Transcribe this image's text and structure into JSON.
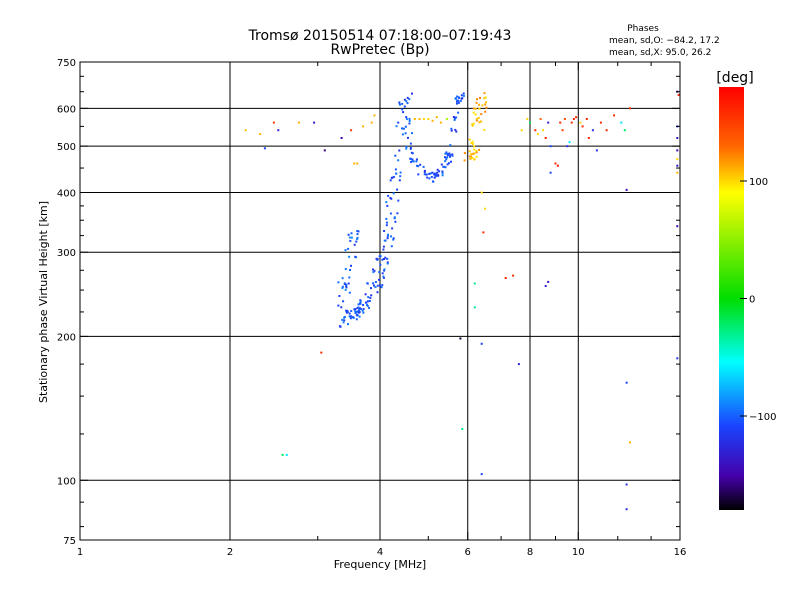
{
  "chart_data": {
    "type": "scatter",
    "title": "Tromsø 20150514 07:18:00–07:19:43",
    "subtitle": "RwPretec (Bp)",
    "stats": {
      "heading": "Phases",
      "line_o": "mean, sd,O: −84.2, 17.2",
      "line_x": "mean, sd,X:  95.0, 26.2"
    },
    "xlabel": "Frequency [MHz]",
    "ylabel": "Stationary phase Virtual Height [km]",
    "x_scale": "log",
    "y_scale": "log",
    "xlim": [
      1,
      16
    ],
    "ylim": [
      75,
      750
    ],
    "grid": true,
    "x_ticks": [
      1,
      2,
      4,
      6,
      8,
      10,
      16
    ],
    "x_tick_labels": [
      "1",
      "2",
      "4",
      "6",
      "8",
      "10",
      "16"
    ],
    "x_minor_ticks": [
      3,
      5,
      7,
      9,
      12,
      14
    ],
    "y_ticks": [
      75,
      100,
      200,
      300,
      400,
      500,
      600,
      750
    ],
    "y_tick_labels": [
      "75",
      "100",
      "200",
      "300",
      "400",
      "500",
      "600",
      "750"
    ],
    "y_minor_ticks": [
      80,
      90,
      125,
      150,
      175,
      225,
      250,
      275,
      325,
      350,
      375,
      450,
      550,
      650,
      700
    ],
    "colorbar": {
      "label": "[deg]",
      "range": [
        -180,
        180
      ],
      "ticks": [
        100,
        0,
        -100
      ],
      "tick_labels": [
        "100",
        "0",
        "−100"
      ],
      "colormap": "rainbow"
    },
    "series": [
      {
        "trace_segments": [
          {
            "f": [
              3.35,
              3.45,
              3.55,
              3.65,
              3.75,
              3.85,
              3.95,
              4.05,
              4.15,
              4.25,
              4.35,
              4.45,
              4.52
            ],
            "h": [
              210,
              220,
              222,
              226,
              235,
              248,
              262,
              285,
              320,
              380,
              470,
              570,
              640
            ],
            "jitter_f": 0.03,
            "jitter_h": 0.025,
            "n": 150,
            "phase": -105
          },
          {
            "f": [
              3.35,
              3.42,
              3.5,
              3.58
            ],
            "h": [
              230,
              260,
              300,
              330
            ],
            "jitter_f": 0.03,
            "jitter_h": 0.04,
            "n": 40,
            "phase": -100
          },
          {
            "f": [
              4.5,
              4.6,
              4.75,
              4.95,
              5.15,
              5.35,
              5.5,
              5.65,
              5.75,
              5.8
            ],
            "h": [
              620,
              500,
              450,
              430,
              430,
              445,
              480,
              560,
              620,
              640
            ],
            "jitter_f": 0.02,
            "jitter_h": 0.02,
            "n": 110,
            "phase": -105
          },
          {
            "f": [
              6.0,
              6.1,
              6.2,
              6.3,
              6.35,
              6.4
            ],
            "h": [
              480,
              475,
              490,
              540,
              600,
              640
            ],
            "jitter_f": 0.03,
            "jitter_h": 0.02,
            "n": 50,
            "phase": 110
          }
        ],
        "points": [
          {
            "f": 2.15,
            "h": 540,
            "phase": 105
          },
          {
            "f": 2.3,
            "h": 530,
            "phase": 110
          },
          {
            "f": 2.35,
            "h": 495,
            "phase": -110
          },
          {
            "f": 2.45,
            "h": 560,
            "phase": 150
          },
          {
            "f": 2.5,
            "h": 540,
            "phase": -130
          },
          {
            "f": 2.75,
            "h": 560,
            "phase": 110
          },
          {
            "f": 2.95,
            "h": 560,
            "phase": -140
          },
          {
            "f": 3.1,
            "h": 490,
            "phase": -160
          },
          {
            "f": 3.35,
            "h": 520,
            "phase": -150
          },
          {
            "f": 3.5,
            "h": 540,
            "phase": 150
          },
          {
            "f": 3.55,
            "h": 460,
            "phase": 110
          },
          {
            "f": 3.6,
            "h": 460,
            "phase": 110
          },
          {
            "f": 3.7,
            "h": 550,
            "phase": 110
          },
          {
            "f": 3.85,
            "h": 560,
            "phase": 110
          },
          {
            "f": 3.9,
            "h": 580,
            "phase": 110
          },
          {
            "f": 4.7,
            "h": 570,
            "phase": 110
          },
          {
            "f": 4.8,
            "h": 570,
            "phase": 110
          },
          {
            "f": 4.9,
            "h": 570,
            "phase": 100
          },
          {
            "f": 5.0,
            "h": 570,
            "phase": 100
          },
          {
            "f": 5.1,
            "h": 565,
            "phase": 110
          },
          {
            "f": 5.2,
            "h": 575,
            "phase": 110
          },
          {
            "f": 5.3,
            "h": 560,
            "phase": 110
          },
          {
            "f": 5.45,
            "h": 570,
            "phase": 60
          },
          {
            "f": 3.05,
            "h": 185,
            "phase": 160
          },
          {
            "f": 2.55,
            "h": 113,
            "phase": -20
          },
          {
            "f": 2.6,
            "h": 113,
            "phase": -60
          },
          {
            "f": 5.8,
            "h": 198,
            "phase": -170
          },
          {
            "f": 5.85,
            "h": 128,
            "phase": -30
          },
          {
            "f": 6.2,
            "h": 258,
            "phase": -30
          },
          {
            "f": 6.2,
            "h": 230,
            "phase": -30
          },
          {
            "f": 6.4,
            "h": 193,
            "phase": -110
          },
          {
            "f": 6.4,
            "h": 103,
            "phase": -110
          },
          {
            "f": 6.45,
            "h": 330,
            "phase": 160
          },
          {
            "f": 7.15,
            "h": 265,
            "phase": 160
          },
          {
            "f": 7.4,
            "h": 268,
            "phase": 160
          },
          {
            "f": 7.6,
            "h": 175,
            "phase": -130
          },
          {
            "f": 8.6,
            "h": 255,
            "phase": -130
          },
          {
            "f": 8.7,
            "h": 260,
            "phase": -140
          },
          {
            "f": 6.4,
            "h": 400,
            "phase": 100
          },
          {
            "f": 6.5,
            "h": 370,
            "phase": 100
          },
          {
            "f": 7.7,
            "h": 540,
            "phase": 100
          },
          {
            "f": 7.9,
            "h": 570,
            "phase": 100
          },
          {
            "f": 8.0,
            "h": 560,
            "phase": -20
          },
          {
            "f": 8.2,
            "h": 540,
            "phase": 160
          },
          {
            "f": 8.3,
            "h": 530,
            "phase": 100
          },
          {
            "f": 8.4,
            "h": 570,
            "phase": 130
          },
          {
            "f": 8.5,
            "h": 540,
            "phase": 100
          },
          {
            "f": 8.6,
            "h": 520,
            "phase": 160
          },
          {
            "f": 8.7,
            "h": 560,
            "phase": -130
          },
          {
            "f": 8.8,
            "h": 500,
            "phase": -110
          },
          {
            "f": 8.8,
            "h": 440,
            "phase": -110
          },
          {
            "f": 9.0,
            "h": 460,
            "phase": 160
          },
          {
            "f": 9.1,
            "h": 455,
            "phase": 170
          },
          {
            "f": 9.2,
            "h": 560,
            "phase": 160
          },
          {
            "f": 9.3,
            "h": 540,
            "phase": 150
          },
          {
            "f": 9.4,
            "h": 570,
            "phase": 140
          },
          {
            "f": 9.5,
            "h": 500,
            "phase": -120
          },
          {
            "f": 9.6,
            "h": 510,
            "phase": -60
          },
          {
            "f": 9.7,
            "h": 560,
            "phase": 160
          },
          {
            "f": 9.8,
            "h": 570,
            "phase": 160
          },
          {
            "f": 9.9,
            "h": 575,
            "phase": 160
          },
          {
            "f": 10.1,
            "h": 560,
            "phase": 100
          },
          {
            "f": 10.2,
            "h": 550,
            "phase": 160
          },
          {
            "f": 10.4,
            "h": 570,
            "phase": 160
          },
          {
            "f": 10.5,
            "h": 520,
            "phase": 160
          },
          {
            "f": 10.7,
            "h": 540,
            "phase": -120
          },
          {
            "f": 10.9,
            "h": 490,
            "phase": -120
          },
          {
            "f": 11.1,
            "h": 560,
            "phase": 160
          },
          {
            "f": 11.4,
            "h": 540,
            "phase": 160
          },
          {
            "f": 11.8,
            "h": 580,
            "phase": 160
          },
          {
            "f": 12.2,
            "h": 560,
            "phase": -60
          },
          {
            "f": 12.4,
            "h": 540,
            "phase": -20
          },
          {
            "f": 12.7,
            "h": 600,
            "phase": 160
          },
          {
            "f": 12.5,
            "h": 405,
            "phase": -150
          },
          {
            "f": 12.5,
            "h": 160,
            "phase": -110
          },
          {
            "f": 12.7,
            "h": 120,
            "phase": 110
          },
          {
            "f": 12.5,
            "h": 98,
            "phase": -120
          },
          {
            "f": 12.5,
            "h": 87,
            "phase": -120
          },
          {
            "f": 15.8,
            "h": 650,
            "phase": -160
          },
          {
            "f": 15.9,
            "h": 640,
            "phase": 160
          },
          {
            "f": 15.8,
            "h": 550,
            "phase": -120
          },
          {
            "f": 15.8,
            "h": 520,
            "phase": -140
          },
          {
            "f": 15.8,
            "h": 490,
            "phase": -150
          },
          {
            "f": 15.8,
            "h": 470,
            "phase": 100
          },
          {
            "f": 15.8,
            "h": 455,
            "phase": -140
          },
          {
            "f": 15.8,
            "h": 440,
            "phase": 110
          },
          {
            "f": 15.8,
            "h": 340,
            "phase": -150
          },
          {
            "f": 15.8,
            "h": 180,
            "phase": -120
          }
        ]
      }
    ]
  }
}
